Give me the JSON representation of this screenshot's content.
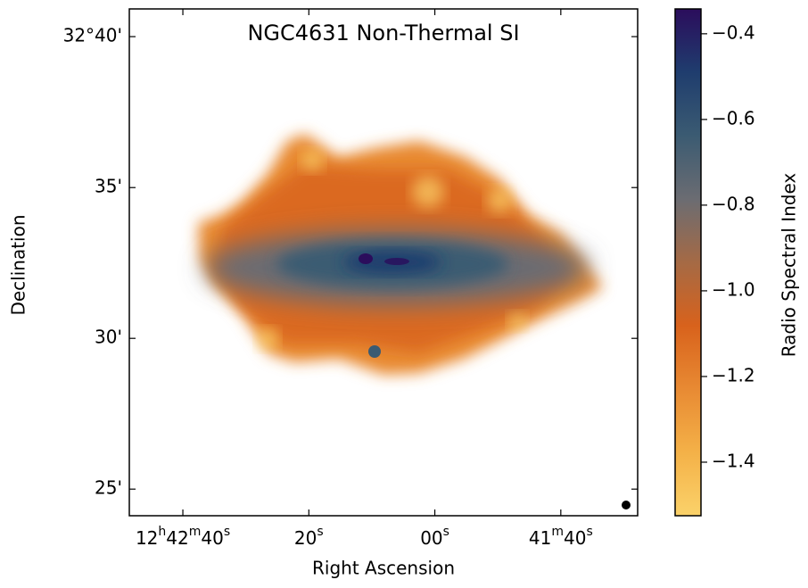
{
  "chart_data": {
    "type": "image",
    "title": "NGC4631 Non-Thermal SI",
    "x_label": "Right Ascension",
    "y_label": "Declination",
    "colorbar_label": "Radio Spectral Index",
    "xlim": [
      2568.5,
      2487.8
    ],
    "xticks": [
      {
        "value": 2560,
        "label": "12h42m40s"
      },
      {
        "value": 2540,
        "label": "20s"
      },
      {
        "value": 2520,
        "label": "00s"
      },
      {
        "value": 2500,
        "label": "41m40s"
      }
    ],
    "ylim": [
      32.402,
      32.682
    ],
    "yticks": [
      {
        "value": 32.6667,
        "label": "32°40'"
      },
      {
        "value": 32.5833,
        "label": "35'"
      },
      {
        "value": 32.5,
        "label": "30'"
      },
      {
        "value": 32.4167,
        "label": "25'"
      }
    ],
    "clim": [
      -1.525,
      -0.342
    ],
    "cticks": [
      {
        "value": -0.4,
        "label": "−0.4"
      },
      {
        "value": -0.6,
        "label": "−0.6"
      },
      {
        "value": -0.8,
        "label": "−0.8"
      },
      {
        "value": -1.0,
        "label": "−1.0"
      },
      {
        "value": -1.2,
        "label": "−1.2"
      },
      {
        "value": -1.4,
        "label": "−1.4"
      }
    ],
    "colormap": [
      "#2b0d5c",
      "#1f3d6e",
      "#3b5b72",
      "#6b6c72",
      "#a56a45",
      "#d8621c",
      "#e88a33",
      "#f4b148",
      "#fbd26a"
    ]
  }
}
